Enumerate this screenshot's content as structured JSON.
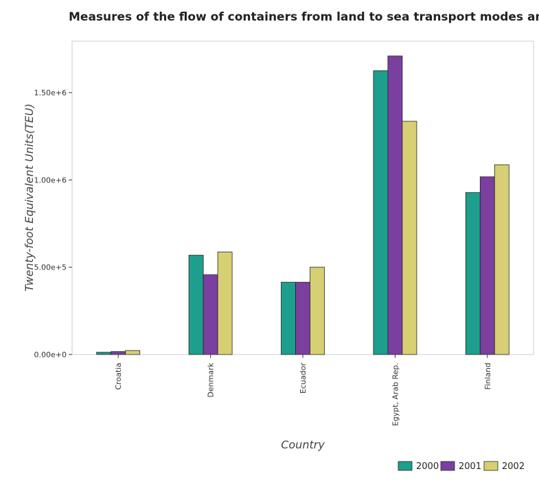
{
  "chart_data": {
    "type": "bar",
    "title": "Measures of the flow of containers from land to sea transport modes and vice versa",
    "xlabel": "Country",
    "ylabel": "Twenty-foot Equivalent Units(TEU)",
    "categories": [
      "Croatia",
      "Denmark",
      "Ecuador",
      "Egypt, Arab Rep.",
      "Finland"
    ],
    "series": [
      {
        "name": "2000",
        "color": "#1e9e8c",
        "values": [
          13000,
          569000,
          414000,
          1626000,
          928000
        ]
      },
      {
        "name": "2001",
        "color": "#7b3fa0",
        "values": [
          17000,
          457000,
          414000,
          1710000,
          1018000
        ]
      },
      {
        "name": "2002",
        "color": "#d6cf74",
        "values": [
          23000,
          587000,
          500000,
          1336000,
          1087000
        ]
      }
    ],
    "yticks": [
      0,
      500000,
      1000000,
      1500000
    ],
    "ytick_labels": [
      "0.00e+0",
      "5.00e+5",
      "1.00e+6",
      "1.50e+6"
    ],
    "ylim": [
      0,
      1795000
    ],
    "grid": false,
    "legend_position": "bottom-right"
  }
}
